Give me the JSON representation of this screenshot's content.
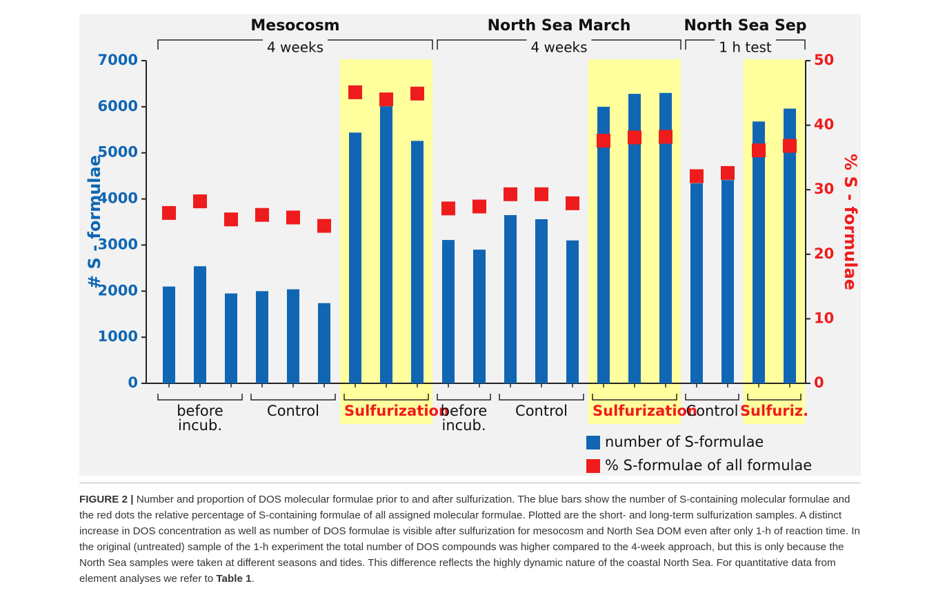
{
  "chart_data": {
    "type": "bar",
    "categories": [
      null,
      null,
      null,
      null,
      null,
      null,
      null,
      null,
      null,
      null,
      null,
      null,
      null,
      null,
      null,
      null,
      null,
      null,
      null,
      null,
      null
    ],
    "series": [
      {
        "name": "number of S-formulae",
        "color": "#1066b3",
        "values": [
          2100,
          2540,
          1950,
          2000,
          2040,
          1740,
          5440,
          6010,
          5260,
          3110,
          2900,
          3650,
          3560,
          3100,
          6000,
          6280,
          6300,
          4340,
          4410,
          5680,
          5960
        ]
      },
      {
        "name": "% S-formulae of all formulae",
        "color": "#ee1c1c",
        "axis": "y2",
        "marker": "square",
        "values": [
          26.4,
          28.2,
          25.4,
          26.1,
          25.7,
          24.4,
          45.1,
          44.0,
          44.9,
          27.1,
          27.4,
          29.3,
          29.3,
          27.9,
          37.6,
          38.1,
          38.2,
          32.1,
          32.6,
          36.1,
          36.8
        ]
      }
    ],
    "ylabel": "# S - formulae",
    "y2label": "% S - formulae",
    "ylim": [
      0,
      7000
    ],
    "yticks": [
      0,
      1000,
      2000,
      3000,
      4000,
      5000,
      6000,
      7000
    ],
    "y2lim": [
      0,
      50
    ],
    "y2ticks": [
      0,
      10,
      20,
      30,
      40,
      50
    ],
    "highlight_color": "#ffff9e",
    "experiments": [
      {
        "label": "Mesocosm",
        "duration": "4 weeks"
      },
      {
        "label": "North Sea March",
        "duration": "4 weeks"
      },
      {
        "label": "North Sea Sep",
        "duration": "1 h test"
      }
    ],
    "groups": [
      {
        "label": "before incub.",
        "highlight": false
      },
      {
        "label": "Control",
        "highlight": false
      },
      {
        "label": "Sulfurization",
        "highlight": true
      },
      {
        "label": "before incub.",
        "highlight": false
      },
      {
        "label": "Control",
        "highlight": false
      },
      {
        "label": "Sulfurization",
        "highlight": true
      },
      {
        "label": "Control",
        "highlight": false
      },
      {
        "label": "Sulfuriz.",
        "highlight": true
      }
    ]
  },
  "caption": {
    "label": "FIGURE 2 |",
    "text": " Number and proportion of DOS molecular formulae prior to and after sulfurization. The blue bars show the number of S-containing molecular formulae and the red dots the relative percentage of S-containing formulae of all assigned molecular formulae. Plotted are the short- and long-term sulfurization samples. A distinct increase in DOS concentration as well as number of DOS formulae is visible after sulfurization for mesocosm and North Sea DOM even after only 1-h of reaction time. In the original (untreated) sample of the 1-h experiment the total number of DOS compounds was higher compared to the 4-week approach, but this is only because the North Sea samples were taken at different seasons and tides. This difference reflects the highly dynamic nature of the coastal North Sea. For quantitative data from element analyses we refer to ",
    "ref": "Table 1",
    "end": "."
  }
}
